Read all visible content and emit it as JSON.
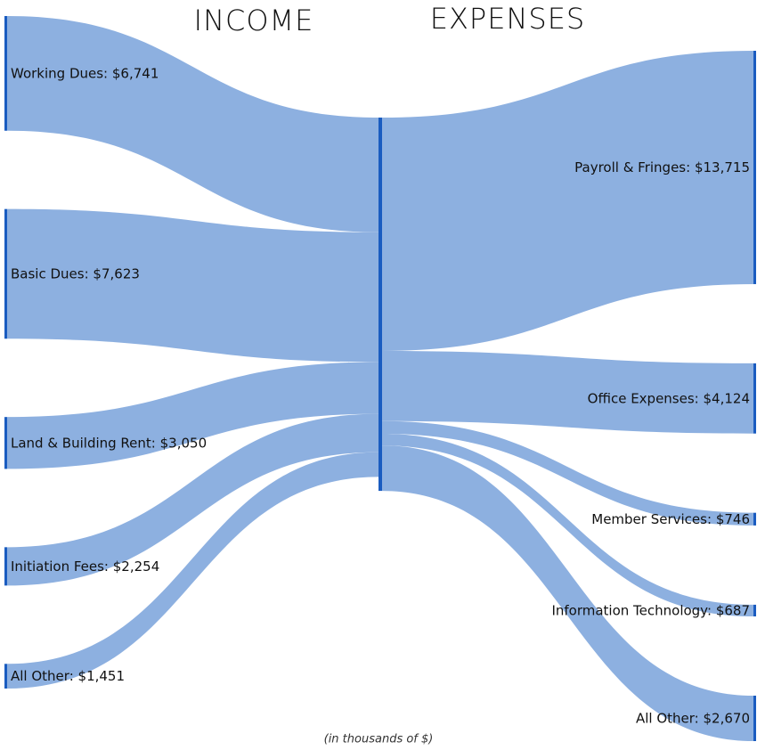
{
  "chart_data": {
    "type": "sankey",
    "left_title": "INCOME",
    "right_title": "EXPENSES",
    "note": "(in thousands of $)",
    "flow_color": "#8db0e0",
    "node_color": "#1a5cc0",
    "sources": {
      "names": [
        "Working Dues:",
        "Basic Dues:",
        "Land & Building Rent:",
        "Initiation Fees:",
        "All Other:"
      ],
      "values": [
        6741,
        7623,
        3050,
        2254,
        1451
      ],
      "value_labels": [
        "$6,741",
        "$7,623",
        "$3,050",
        "$2,254",
        "$1,451"
      ]
    },
    "targets": {
      "names": [
        "Payroll & Fringes:",
        "Office Expenses:",
        "Member Services:",
        "Information Technology:",
        "All Other:"
      ],
      "values": [
        13715,
        4124,
        746,
        687,
        2670
      ],
      "value_labels": [
        "$13,715",
        "$4,124",
        "$746",
        "$687",
        "$2,670"
      ]
    }
  }
}
